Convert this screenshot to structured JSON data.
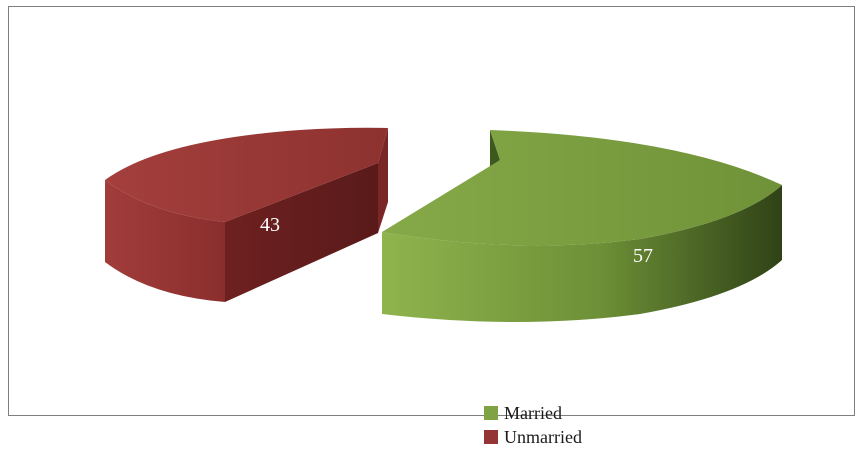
{
  "chart_data": {
    "type": "pie",
    "style": "3d-exploded",
    "title": "",
    "categories": [
      "Married",
      "Unmarried"
    ],
    "values": [
      57,
      43
    ],
    "colors": [
      "#7fa242",
      "#943434"
    ],
    "data_labels": [
      "57",
      "43"
    ],
    "legend_position": "bottom"
  },
  "legend": {
    "items": [
      {
        "label": "Married",
        "color": "#7fa242"
      },
      {
        "label": "Unmarried",
        "color": "#943434"
      }
    ]
  }
}
